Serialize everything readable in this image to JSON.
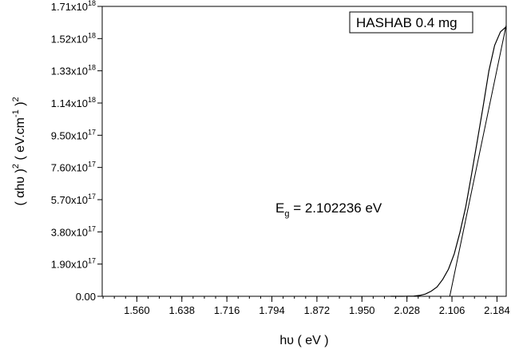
{
  "chart_data": {
    "type": "line",
    "xlabel": "hυ ( eV )",
    "ylabel_parts": [
      "( αhυ )",
      "2",
      " ( eV.cm",
      "-1",
      " )",
      "2"
    ],
    "xlim": [
      1.5,
      2.2
    ],
    "ylim": [
      0,
      1.71e+18
    ],
    "x_ticks": [
      1.56,
      1.638,
      1.716,
      1.794,
      1.872,
      1.95,
      2.028,
      2.106,
      2.184
    ],
    "x_tick_labels": [
      "1.560",
      "1.638",
      "1.716",
      "1.794",
      "1.872",
      "1.950",
      "2.028",
      "2.106",
      "2.184"
    ],
    "y_ticks": [
      0,
      1.9e+17,
      3.8e+17,
      5.7e+17,
      7.6e+17,
      9.5e+17,
      1.14e+18,
      1.33e+18,
      1.52e+18,
      1.71e+18
    ],
    "y_tick_labels": [
      {
        "mantissa": "0.00",
        "exp": ""
      },
      {
        "mantissa": "1.90x10",
        "exp": "17"
      },
      {
        "mantissa": "3.80x10",
        "exp": "17"
      },
      {
        "mantissa": "5.70x10",
        "exp": "17"
      },
      {
        "mantissa": "7.60x10",
        "exp": "17"
      },
      {
        "mantissa": "9.50x10",
        "exp": "17"
      },
      {
        "mantissa": "1.14x10",
        "exp": "18"
      },
      {
        "mantissa": "1.33x10",
        "exp": "18"
      },
      {
        "mantissa": "1.52x10",
        "exp": "18"
      },
      {
        "mantissa": "1.71x10",
        "exp": "18"
      }
    ],
    "legend": "HASHAB 0.4 mg",
    "legend_position": "top-right",
    "annotation": {
      "prefix": "E",
      "sub": "g",
      "text": " = 2.102236 eV"
    },
    "series": [
      {
        "x": [
          2.0,
          2.02,
          2.03,
          2.04,
          2.05,
          2.06,
          2.07,
          2.08,
          2.09,
          2.1,
          2.11,
          2.12,
          2.13,
          2.14,
          2.15,
          2.16,
          2.17,
          2.18,
          2.19,
          2.2
        ],
        "y": [
          0,
          0,
          300000000000000.0,
          1500000000000000.0,
          5000000000000000.0,
          1.3e+16,
          3e+16,
          5.5e+16,
          1e+17,
          1.6e+17,
          2.5e+17,
          3.8e+17,
          5.3e+17,
          7.2e+17,
          9.2e+17,
          1.12e+18,
          1.33e+18,
          1.48e+18,
          1.56e+18,
          1.59e+18
        ]
      },
      {
        "x": [
          2.102236,
          2.2
        ],
        "y": [
          0,
          1.6e+18
        ]
      }
    ]
  }
}
